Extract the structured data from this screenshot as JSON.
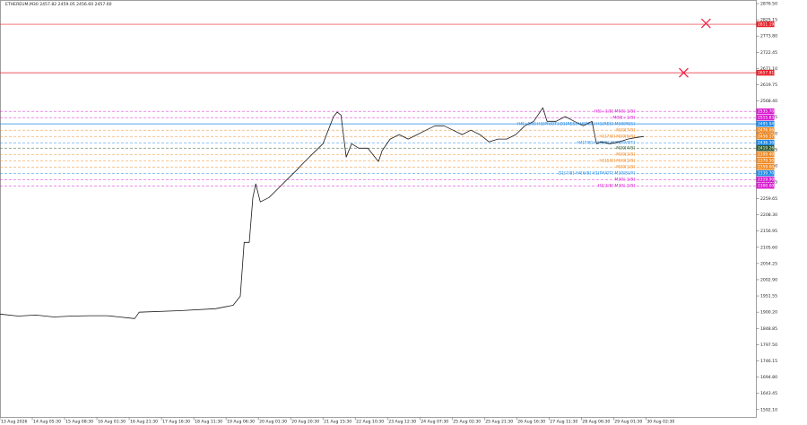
{
  "chart_data": {
    "type": "line",
    "title": "ETHEREUM,M30  2457.82 2459.05 2456.60 2457.60",
    "x": [
      0,
      5.6,
      11.1,
      16.7,
      22.2,
      27.8,
      33.3,
      41.7,
      43.1,
      55.6,
      66.7,
      72.2,
      74.4,
      75.6,
      77.2,
      78.3,
      79.2,
      80.6,
      83.3,
      86.1,
      88.9,
      91.7,
      94.4,
      97.2,
      100,
      103.3,
      104.4,
      105.6,
      107.2,
      108.9,
      111.1,
      113.9,
      116.1,
      117.2,
      118.3,
      120.8,
      123.6,
      126.4,
      129.2,
      131.9,
      134.7,
      137.5,
      140.3,
      143.1,
      145.8,
      148.6,
      151.4,
      154.2,
      156.9,
      159.7,
      162.5,
      165.3,
      168.1,
      169.4,
      172.2,
      175,
      177.8,
      180.6,
      183.3,
      184.7,
      186.1,
      188.9,
      191.7,
      194.4,
      197.2,
      199.4
    ],
    "series": [
      {
        "color": "#1a1a1a",
        "values": [
          1894,
          1888,
          1891,
          1885,
          1888,
          1889,
          1889,
          1880,
          1900,
          1905,
          1911,
          1922,
          1951,
          2121,
          2121,
          2263,
          2306,
          2249,
          2263,
          2291,
          2320,
          2348,
          2377,
          2405,
          2433,
          2519,
          2533,
          2524,
          2391,
          2433,
          2419,
          2419,
          2391,
          2377,
          2411,
          2448,
          2462,
          2448,
          2462,
          2476,
          2490,
          2490,
          2476,
          2462,
          2476,
          2462,
          2439,
          2448,
          2448,
          2462,
          2490,
          2504,
          2547,
          2504,
          2504,
          2519,
          2504,
          2490,
          2504,
          2433,
          2439,
          2433,
          2439,
          2448,
          2453,
          2456
        ]
      }
    ],
    "xlim": [
      0,
      234.2
    ],
    "ylim": [
      1567.3,
      2887.9
    ],
    "xticks": [
      {
        "value": 0,
        "label": "13 Aug 2026"
      },
      {
        "value": 10,
        "label": "14 Aug 05:30"
      },
      {
        "value": 20,
        "label": "15 Aug 08:30"
      },
      {
        "value": 30,
        "label": "16 Aug 01:30"
      },
      {
        "value": 40,
        "label": "16 Aug 21:30"
      },
      {
        "value": 50,
        "label": "17 Aug 16:30"
      },
      {
        "value": 60,
        "label": "18 Aug 11:30"
      },
      {
        "value": 70,
        "label": "19 Aug 06:30"
      },
      {
        "value": 80,
        "label": "20 Aug 01:30"
      },
      {
        "value": 90,
        "label": "20 Aug 20:30"
      },
      {
        "value": 100,
        "label": "21 Aug 15:30"
      },
      {
        "value": 110,
        "label": "22 Aug 10:30"
      },
      {
        "value": 120,
        "label": "23 Aug 12:30"
      },
      {
        "value": 130,
        "label": "24 Aug 07:30"
      },
      {
        "value": 140,
        "label": "25 Aug 02:30"
      },
      {
        "value": 150,
        "label": "25 Aug 21:30"
      },
      {
        "value": 160,
        "label": "26 Aug 16:30"
      },
      {
        "value": 170,
        "label": "27 Aug 11:30"
      },
      {
        "value": 180,
        "label": "28 Aug 06:30"
      },
      {
        "value": 190,
        "label": "29 Aug 01:30"
      },
      {
        "value": 200,
        "label": "30 Aug 02:30"
      }
    ],
    "yticks": [
      {
        "value": 2876.5,
        "label": "2876.50"
      },
      {
        "value": 2825.15,
        "label": "2825.15"
      },
      {
        "value": 2773.8,
        "label": "2773.80"
      },
      {
        "value": 2722.45,
        "label": "2722.45"
      },
      {
        "value": 2671.1,
        "label": "2671.10"
      },
      {
        "value": 2619.75,
        "label": "2619.75"
      },
      {
        "value": 2568.4,
        "label": "2568.40"
      },
      {
        "value": 2517.05,
        "label": "2517.05"
      },
      {
        "value": 2465.7,
        "label": "2465.70"
      },
      {
        "value": 2414.35,
        "label": "2414.35"
      },
      {
        "value": 2363,
        "label": "2363.00"
      },
      {
        "value": 2311.65,
        "label": "2311.65"
      },
      {
        "value": 2259.65,
        "label": "2259.65"
      },
      {
        "value": 2208.3,
        "label": "2208.30"
      },
      {
        "value": 2156.95,
        "label": "2156.95"
      },
      {
        "value": 2105.6,
        "label": "2105.60"
      },
      {
        "value": 2054.25,
        "label": "2054.25"
      },
      {
        "value": 2002.9,
        "label": "2002.90"
      },
      {
        "value": 1951.55,
        "label": "1951.55"
      },
      {
        "value": 1900.2,
        "label": "1900.20"
      },
      {
        "value": 1848.85,
        "label": "1848.85"
      },
      {
        "value": 1797.5,
        "label": "1797.50"
      },
      {
        "value": 1746.15,
        "label": "1746.15"
      },
      {
        "value": 1694.8,
        "label": "1694.80"
      },
      {
        "value": 1643.45,
        "label": "1643.45"
      },
      {
        "value": 1592.1,
        "label": "1592.10"
      }
    ],
    "levels": [
      {
        "value": 2811.19,
        "value_label": "2811.19",
        "color": "#e8202a",
        "style": "solid"
      },
      {
        "value": 2657.81,
        "value_label": "2657.81",
        "color": "#e8202a",
        "style": "solid"
      },
      {
        "value": 2535.7,
        "value_label": "2535.70",
        "label": "H5[+1/8] M00[-1/8]",
        "color": "#d81bd0",
        "style": "dashed"
      },
      {
        "value": 2515.83,
        "value_label": "2515.83",
        "label": "M00[+1/8]",
        "color": "#d81bd0",
        "style": "dashed"
      },
      {
        "value": 2495.94,
        "value_label": "2495.94",
        "label": "H4[+1/8] H1[PIVOT] D1[RES] H4[RES] H1[RES] M30[RES]",
        "color": "#1e88e5",
        "style": "solid"
      },
      {
        "value": 2476.06,
        "value_label": "2476.06",
        "label": "M30[7/8]",
        "color": "#f08a24",
        "style": "dashed"
      },
      {
        "value": 2456.17,
        "value_label": "2456.17",
        "label": "H1[7/8] M30[6/8]",
        "color": "#f08a24",
        "style": "dashed"
      },
      {
        "value": 2436.3,
        "value_label": "2436.30",
        "label": "H4[7/8] H1[6/8] M30[PIVOT]",
        "color": "#1e88e5",
        "style": "dashed"
      },
      {
        "value": 2419.26,
        "value_label": "2419.26",
        "label": "M30[4/8]",
        "color": "#2e5a2e",
        "style": "dashed"
      },
      {
        "value": 2399.4,
        "value_label": "2399.40",
        "label": "M30[3/8]",
        "color": "#f08a24",
        "style": "dashed"
      },
      {
        "value": 2379.5,
        "value_label": "2379.50",
        "label": "H1[5/8] M30[2/8]",
        "color": "#f08a24",
        "style": "dashed"
      },
      {
        "value": 2359.6,
        "value_label": "2359.60",
        "label": "M30[1/8]",
        "color": "#f08a24",
        "style": "dashed"
      },
      {
        "value": 2339.7,
        "value_label": "2339.70",
        "label": "D1[7/8] H4[6/8] H1[PIVOT] M30[SUP]",
        "color": "#1e88e5",
        "style": "dashed"
      },
      {
        "value": 2319.9,
        "value_label": "2319.90",
        "label": "M30[-1/8]",
        "color": "#d81bd0",
        "style": "dashed"
      },
      {
        "value": 2300,
        "value_label": "2300.00",
        "label": "H1[3/8] M30[-2/8]",
        "color": "#d81bd0",
        "style": "dashed"
      }
    ],
    "markers": [
      {
        "x": 218.6,
        "y": 2814,
        "color": "#f0284a"
      },
      {
        "x": 211.7,
        "y": 2657.8,
        "color": "#f0284a"
      }
    ]
  }
}
